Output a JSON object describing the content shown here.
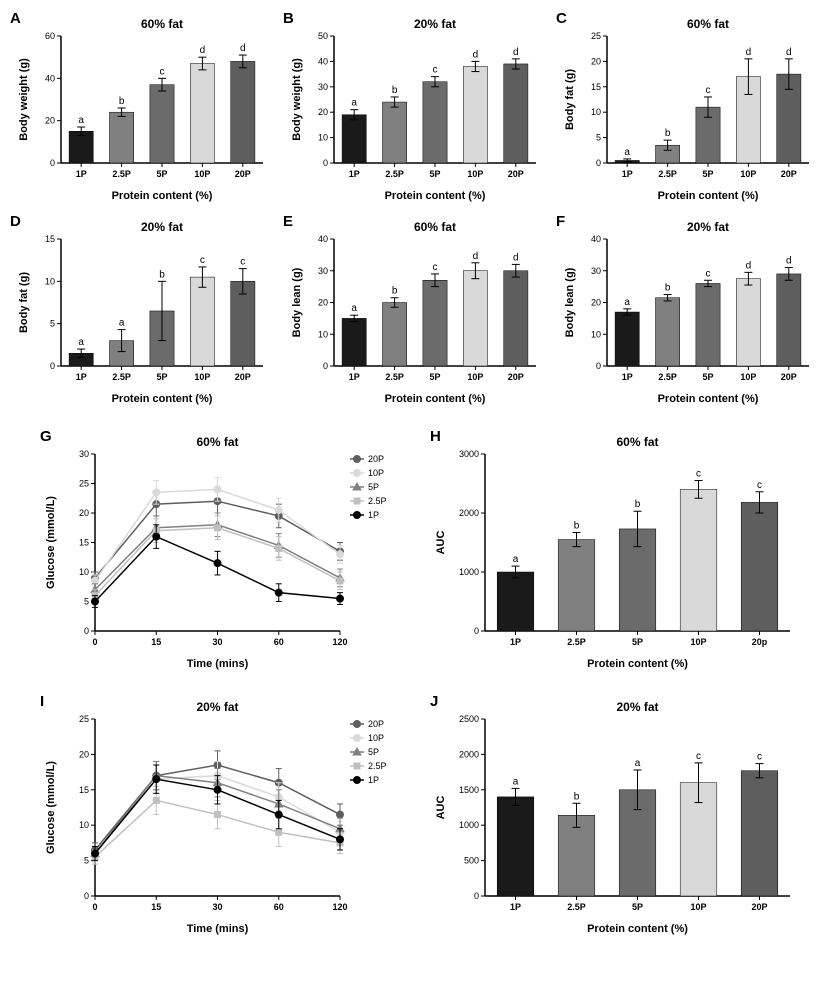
{
  "font_family": "Arial",
  "title_fontsize": 12,
  "axis_label_fontsize": 11,
  "tick_fontsize": 9,
  "panel_label_fontsize": 15,
  "sig_letter_fontsize": 10,
  "legend_fontsize": 9,
  "bar_colors": [
    "#1a1a1a",
    "#808080",
    "#6b6b6b",
    "#d9d9d9",
    "#5e5e5e"
  ],
  "bar_width": 0.6,
  "error_color": "#000000",
  "axis_color": "#000000",
  "background": "#ffffff",
  "bar_panels": {
    "A": {
      "title": "60% fat",
      "ylabel": "Body weight (g)",
      "xlabel": "Protein content (%)",
      "ylim": [
        0,
        60
      ],
      "ystep": 20,
      "cats": [
        "1P",
        "2.5P",
        "5P",
        "10P",
        "20P"
      ],
      "vals": [
        15,
        24,
        37,
        47,
        48
      ],
      "err": [
        2,
        2,
        3,
        3,
        3
      ],
      "letters": [
        "a",
        "b",
        "c",
        "d",
        "d"
      ]
    },
    "B": {
      "title": "20% fat",
      "ylabel": "Body weight (g)",
      "xlabel": "Protein content (%)",
      "ylim": [
        0,
        50
      ],
      "ystep": 10,
      "cats": [
        "1P",
        "2.5P",
        "5P",
        "10P",
        "20P"
      ],
      "vals": [
        19,
        24,
        32,
        38,
        39
      ],
      "err": [
        2,
        2,
        2,
        2,
        2
      ],
      "letters": [
        "a",
        "b",
        "c",
        "d",
        "d"
      ]
    },
    "C": {
      "title": "60% fat",
      "ylabel": "Body fat (g)",
      "xlabel": "Protein content (%)",
      "ylim": [
        0,
        25
      ],
      "ystep": 5,
      "cats": [
        "1P",
        "2.5P",
        "5P",
        "10P",
        "20P"
      ],
      "vals": [
        0.5,
        3.5,
        11,
        17,
        17.5
      ],
      "err": [
        0.3,
        1,
        2,
        3.5,
        3
      ],
      "letters": [
        "a",
        "b",
        "c",
        "d",
        "d"
      ]
    },
    "D": {
      "title": "20% fat",
      "ylabel": "Body fat (g)",
      "xlabel": "Protein content (%)",
      "ylim": [
        0,
        15
      ],
      "ystep": 5,
      "cats": [
        "1P",
        "2.5P",
        "5P",
        "10P",
        "20P"
      ],
      "vals": [
        1.5,
        3,
        6.5,
        10.5,
        10
      ],
      "err": [
        0.5,
        1.3,
        3.5,
        1.2,
        1.5
      ],
      "letters": [
        "a",
        "a",
        "b",
        "c",
        "c"
      ]
    },
    "E": {
      "title": "60% fat",
      "ylabel": "Body lean (g)",
      "xlabel": "Protein content (%)",
      "ylim": [
        0,
        40
      ],
      "ystep": 10,
      "cats": [
        "1P",
        "2.5P",
        "5P",
        "10P",
        "20P"
      ],
      "vals": [
        15,
        20,
        27,
        30,
        30
      ],
      "err": [
        1,
        1.5,
        2,
        2.5,
        2
      ],
      "letters": [
        "a",
        "b",
        "c",
        "d",
        "d"
      ]
    },
    "F": {
      "title": "20% fat",
      "ylabel": "Body lean (g)",
      "xlabel": "Protein content (%)",
      "ylim": [
        0,
        40
      ],
      "ystep": 10,
      "cats": [
        "1P",
        "2.5P",
        "5P",
        "10P",
        "20P"
      ],
      "vals": [
        17,
        21.5,
        26,
        27.5,
        29
      ],
      "err": [
        1,
        1,
        1,
        2,
        2
      ],
      "letters": [
        "a",
        "b",
        "c",
        "d",
        "d"
      ]
    },
    "H": {
      "title": "60% fat",
      "ylabel": "AUC",
      "xlabel": "Protein content (%)",
      "ylim": [
        0,
        3000
      ],
      "ystep": 1000,
      "cats": [
        "1P",
        "2.5P",
        "5P",
        "10P",
        "20p"
      ],
      "vals": [
        1000,
        1550,
        1730,
        2400,
        2180
      ],
      "err": [
        100,
        120,
        300,
        150,
        180
      ],
      "letters": [
        "a",
        "b",
        "b",
        "c",
        "c"
      ]
    },
    "J": {
      "title": "20% fat",
      "ylabel": "AUC",
      "xlabel": "Protein content (%)",
      "ylim": [
        0,
        2500
      ],
      "ystep": 500,
      "cats": [
        "1P",
        "2.5P",
        "5P",
        "10P",
        "20P"
      ],
      "vals": [
        1400,
        1140,
        1500,
        1600,
        1770
      ],
      "err": [
        120,
        170,
        280,
        280,
        100
      ],
      "letters": [
        "a",
        "b",
        "a",
        "c",
        "c"
      ]
    }
  },
  "line_panels": {
    "G": {
      "title": "60% fat",
      "ylabel": "Glucose (mmol/L)",
      "xlabel": "Time (mins)",
      "ylim": [
        0,
        30
      ],
      "ystep": 5,
      "xticks": [
        0,
        15,
        30,
        60,
        120
      ],
      "series": [
        {
          "name": "20P",
          "color": "#5e5e5e",
          "marker": "circle",
          "vals": [
            [
              0,
              9
            ],
            [
              15,
              21.5
            ],
            [
              30,
              22
            ],
            [
              60,
              19.5
            ],
            [
              120,
              13.5
            ]
          ],
          "err": [
            1,
            2,
            2,
            2,
            1.5
          ]
        },
        {
          "name": "10P",
          "color": "#d9d9d9",
          "marker": "circle",
          "vals": [
            [
              0,
              8.5
            ],
            [
              15,
              23.5
            ],
            [
              30,
              24
            ],
            [
              60,
              20.5
            ],
            [
              120,
              13
            ]
          ],
          "err": [
            1,
            2,
            2,
            2,
            1.5
          ]
        },
        {
          "name": "5P",
          "color": "#808080",
          "marker": "triangle",
          "vals": [
            [
              0,
              7
            ],
            [
              15,
              17.5
            ],
            [
              30,
              18
            ],
            [
              60,
              14.5
            ],
            [
              120,
              9
            ]
          ],
          "err": [
            1,
            2,
            2,
            2,
            1.5
          ]
        },
        {
          "name": "2.5P",
          "color": "#c0c0c0",
          "marker": "square",
          "vals": [
            [
              0,
              6
            ],
            [
              15,
              17
            ],
            [
              30,
              17.5
            ],
            [
              60,
              14
            ],
            [
              120,
              8.5
            ]
          ],
          "err": [
            1,
            2,
            2,
            2,
            1.5
          ]
        },
        {
          "name": "1P",
          "color": "#000000",
          "marker": "circle",
          "vals": [
            [
              0,
              5
            ],
            [
              15,
              16
            ],
            [
              30,
              11.5
            ],
            [
              60,
              6.5
            ],
            [
              120,
              5.5
            ]
          ],
          "err": [
            1,
            2,
            2,
            1.5,
            1
          ]
        }
      ]
    },
    "I": {
      "title": "20% fat",
      "ylabel": "Glucose (mmol/L)",
      "xlabel": "Time (mins)",
      "ylim": [
        0,
        25
      ],
      "ystep": 5,
      "xticks": [
        0,
        15,
        30,
        60,
        120
      ],
      "series": [
        {
          "name": "20P",
          "color": "#5e5e5e",
          "marker": "circle",
          "vals": [
            [
              0,
              6.5
            ],
            [
              15,
              17
            ],
            [
              30,
              18.5
            ],
            [
              60,
              16
            ],
            [
              120,
              11.5
            ]
          ],
          "err": [
            1,
            2,
            2,
            2,
            1.5
          ]
        },
        {
          "name": "10P",
          "color": "#d9d9d9",
          "marker": "circle",
          "vals": [
            [
              0,
              6
            ],
            [
              15,
              16.5
            ],
            [
              30,
              17
            ],
            [
              60,
              14
            ],
            [
              120,
              9
            ]
          ],
          "err": [
            1,
            2,
            2,
            2,
            1.5
          ]
        },
        {
          "name": "5P",
          "color": "#808080",
          "marker": "triangle",
          "vals": [
            [
              0,
              6
            ],
            [
              15,
              17
            ],
            [
              30,
              16
            ],
            [
              60,
              13
            ],
            [
              120,
              9.5
            ]
          ],
          "err": [
            1,
            2,
            2,
            2,
            1.5
          ]
        },
        {
          "name": "2.5P",
          "color": "#c0c0c0",
          "marker": "square",
          "vals": [
            [
              0,
              5.5
            ],
            [
              15,
              13.5
            ],
            [
              30,
              11.5
            ],
            [
              60,
              9
            ],
            [
              120,
              7.5
            ]
          ],
          "err": [
            1,
            2,
            2,
            2,
            1.5
          ]
        },
        {
          "name": "1P",
          "color": "#000000",
          "marker": "circle",
          "vals": [
            [
              0,
              6
            ],
            [
              15,
              16.5
            ],
            [
              30,
              15
            ],
            [
              60,
              11.5
            ],
            [
              120,
              8
            ]
          ],
          "err": [
            1,
            2,
            2,
            2,
            1.5
          ]
        }
      ]
    }
  }
}
